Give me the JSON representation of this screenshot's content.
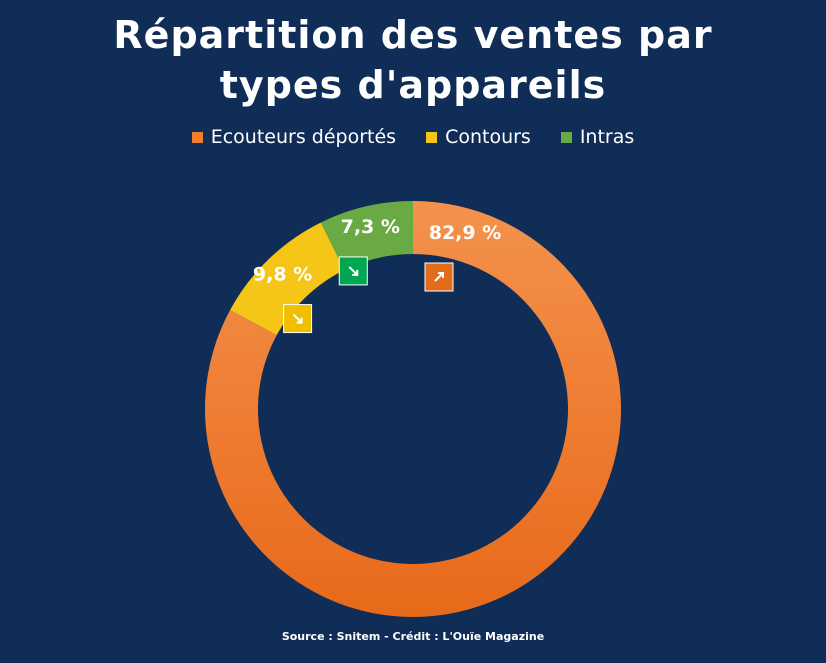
{
  "title_line1": "Répartition des ventes par",
  "title_line2": "types d'appareils",
  "source": "Source : Snitem - Crédit : L'Ouïe Magazine",
  "chart_data": {
    "type": "pie",
    "variant": "donut",
    "title": "Répartition des ventes par types d'appareils",
    "legend_placement": "top",
    "series": [
      {
        "name": "Ecouteurs déportés",
        "value": 82.9,
        "label": "82,9 %",
        "color": "#f07e2a",
        "trend": "up",
        "trend_icon": "arrow-up-right-icon",
        "trend_color": "#e06c1c"
      },
      {
        "name": "Contours",
        "value": 9.8,
        "label": "9,8 %",
        "color": "#f5c518",
        "trend": "down",
        "trend_icon": "arrow-down-right-icon",
        "trend_color": "#f0c000"
      },
      {
        "name": "Intras",
        "value": 7.3,
        "label": "7,3 %",
        "color": "#6aaa45",
        "trend": "down",
        "trend_icon": "arrow-down-right-icon",
        "trend_color": "#00a650"
      }
    ]
  }
}
